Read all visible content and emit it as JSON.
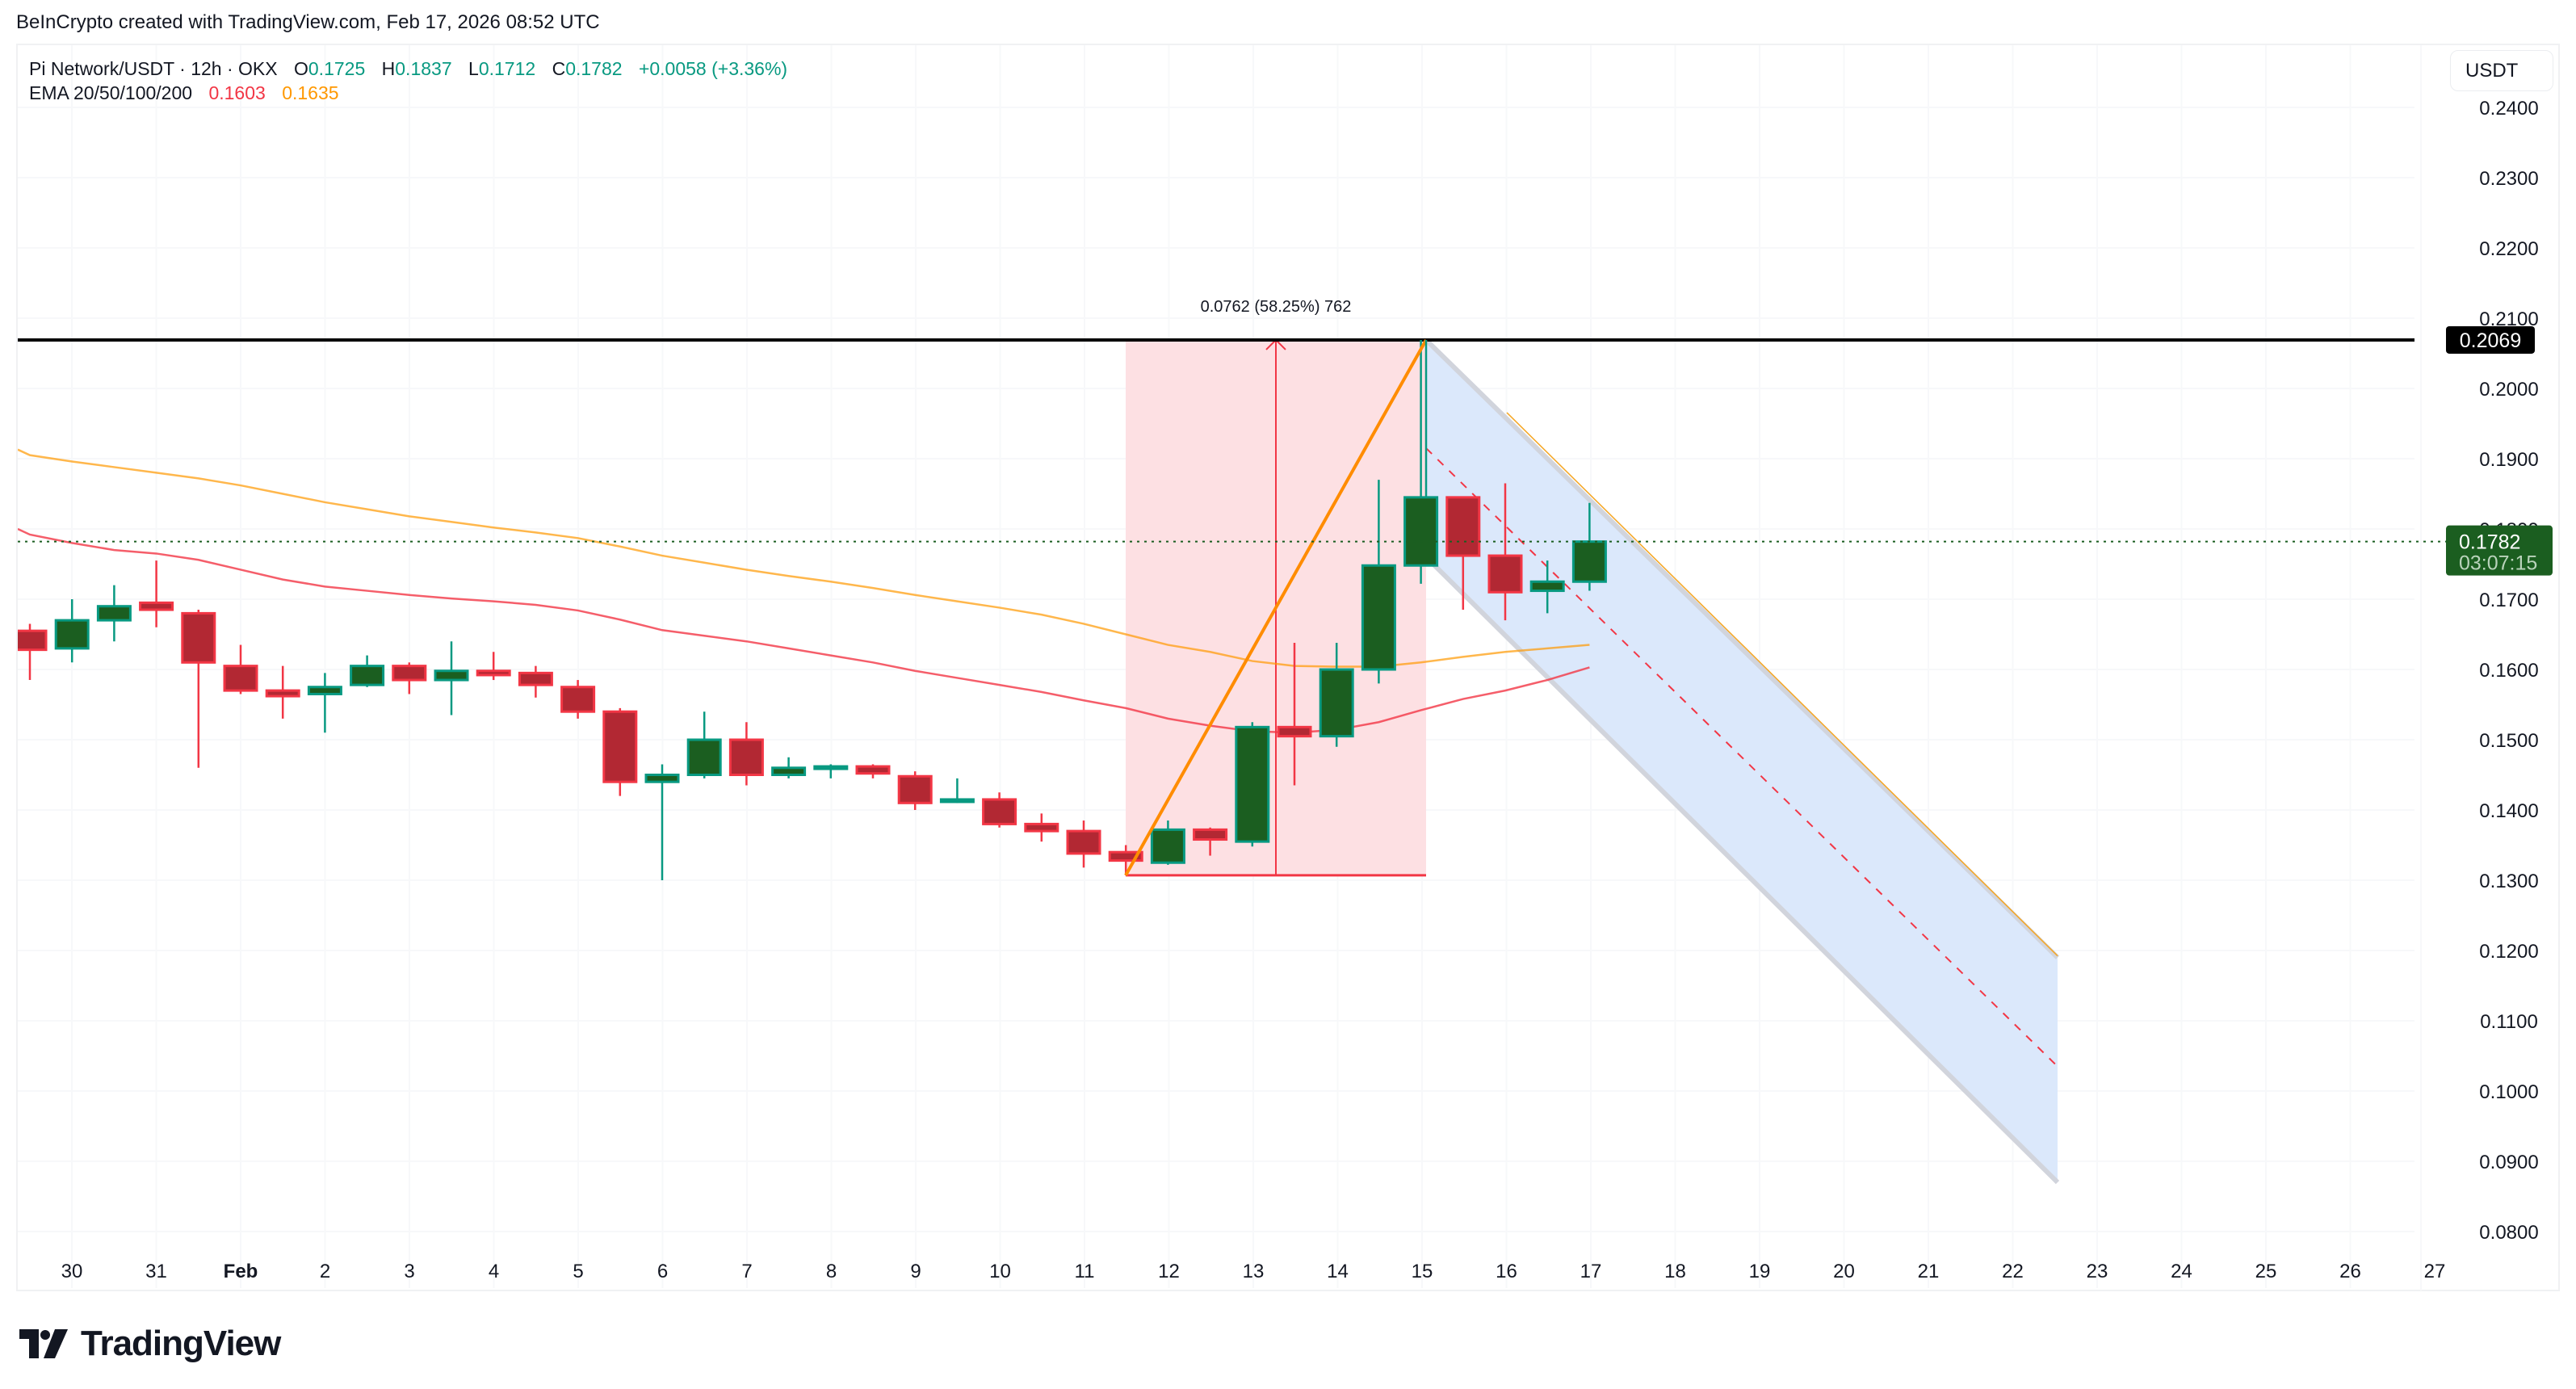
{
  "attribution": "BeInCrypto created with TradingView.com, Feb 17, 2026 08:52 UTC",
  "legend": {
    "symbol": "Pi Network/USDT · 12h · OKX",
    "open_label": "O",
    "open": "0.1725",
    "high_label": "H",
    "high": "0.1837",
    "low_label": "L",
    "low": "0.1712",
    "close_label": "C",
    "close": "0.1782",
    "change": "+0.0058 (+3.36%)",
    "ema_label": "EMA 20/50/100/200",
    "ema_values": [
      "0.1603",
      "0.1635"
    ]
  },
  "currency_button": "USDT",
  "price_tags": {
    "resistance": "0.2069",
    "last_price": "0.1782",
    "countdown": "03:07:15"
  },
  "measure_label": "0.0762 (58.25%) 762",
  "logo_text": "TradingView",
  "colors": {
    "up_body": "#1b5e20",
    "up_border": "#089981",
    "down_body": "#b22833",
    "down_border": "#f23645",
    "ema20": "#f23645",
    "ema50": "#ff9800",
    "measure_fill": "#fde0e3",
    "channel_fill": "#dbe8fb",
    "channel_edge": "#d1d4dc",
    "trend_line": "#ff8c00",
    "resistance_line": "#000000",
    "last_price_tag": "#1b5e20"
  },
  "chart_data": {
    "type": "candlestick",
    "title": "Pi Network/USDT · 12h · OKX",
    "xlabel": "",
    "ylabel": "USDT",
    "ylim": [
      0.08,
      0.24
    ],
    "y_ticks": [
      "0.2400",
      "0.2300",
      "0.2200",
      "0.2100",
      "0.2000",
      "0.1900",
      "0.1800",
      "0.1700",
      "0.1600",
      "0.1500",
      "0.1400",
      "0.1300",
      "0.1200",
      "0.1100",
      "0.1000",
      "0.0900",
      "0.0800"
    ],
    "x_ticks": [
      "30",
      "31",
      "Feb",
      "2",
      "3",
      "4",
      "5",
      "6",
      "7",
      "8",
      "9",
      "10",
      "11",
      "12",
      "13",
      "14",
      "15",
      "16",
      "17",
      "18",
      "19",
      "20",
      "21",
      "22",
      "23",
      "24",
      "25",
      "26",
      "27"
    ],
    "grid": true,
    "candles": [
      {
        "o": 0.1655,
        "h": 0.1665,
        "l": 0.1585,
        "c": 0.1628
      },
      {
        "o": 0.163,
        "h": 0.17,
        "l": 0.161,
        "c": 0.167
      },
      {
        "o": 0.167,
        "h": 0.172,
        "l": 0.164,
        "c": 0.169
      },
      {
        "o": 0.1695,
        "h": 0.1755,
        "l": 0.166,
        "c": 0.1685
      },
      {
        "o": 0.168,
        "h": 0.1685,
        "l": 0.146,
        "c": 0.161
      },
      {
        "o": 0.1605,
        "h": 0.1635,
        "l": 0.1565,
        "c": 0.157
      },
      {
        "o": 0.157,
        "h": 0.1605,
        "l": 0.153,
        "c": 0.1562
      },
      {
        "o": 0.1565,
        "h": 0.1595,
        "l": 0.151,
        "c": 0.1575
      },
      {
        "o": 0.1578,
        "h": 0.162,
        "l": 0.1575,
        "c": 0.1605
      },
      {
        "o": 0.1605,
        "h": 0.161,
        "l": 0.1565,
        "c": 0.1585
      },
      {
        "o": 0.1585,
        "h": 0.164,
        "l": 0.1535,
        "c": 0.1598
      },
      {
        "o": 0.1598,
        "h": 0.1625,
        "l": 0.1585,
        "c": 0.1592
      },
      {
        "o": 0.1595,
        "h": 0.1605,
        "l": 0.156,
        "c": 0.1578
      },
      {
        "o": 0.1575,
        "h": 0.1585,
        "l": 0.153,
        "c": 0.154
      },
      {
        "o": 0.154,
        "h": 0.1545,
        "l": 0.142,
        "c": 0.144
      },
      {
        "o": 0.144,
        "h": 0.1465,
        "l": 0.13,
        "c": 0.145
      },
      {
        "o": 0.145,
        "h": 0.154,
        "l": 0.1445,
        "c": 0.15
      },
      {
        "o": 0.15,
        "h": 0.1525,
        "l": 0.1435,
        "c": 0.145
      },
      {
        "o": 0.145,
        "h": 0.1475,
        "l": 0.1445,
        "c": 0.146
      },
      {
        "o": 0.146,
        "h": 0.1465,
        "l": 0.1445,
        "c": 0.1462
      },
      {
        "o": 0.1462,
        "h": 0.1465,
        "l": 0.1445,
        "c": 0.1452
      },
      {
        "o": 0.1448,
        "h": 0.1455,
        "l": 0.14,
        "c": 0.141
      },
      {
        "o": 0.1412,
        "h": 0.1445,
        "l": 0.141,
        "c": 0.1415
      },
      {
        "o": 0.1415,
        "h": 0.1425,
        "l": 0.1375,
        "c": 0.138
      },
      {
        "o": 0.138,
        "h": 0.1395,
        "l": 0.1355,
        "c": 0.137
      },
      {
        "o": 0.137,
        "h": 0.1385,
        "l": 0.1318,
        "c": 0.1338
      },
      {
        "o": 0.134,
        "h": 0.135,
        "l": 0.1307,
        "c": 0.1328
      },
      {
        "o": 0.1325,
        "h": 0.1385,
        "l": 0.1322,
        "c": 0.1372
      },
      {
        "o": 0.1372,
        "h": 0.1375,
        "l": 0.1335,
        "c": 0.1358
      },
      {
        "o": 0.1355,
        "h": 0.1525,
        "l": 0.1348,
        "c": 0.1518
      },
      {
        "o": 0.1518,
        "h": 0.1638,
        "l": 0.1435,
        "c": 0.1505
      },
      {
        "o": 0.1505,
        "h": 0.1638,
        "l": 0.149,
        "c": 0.16
      },
      {
        "o": 0.16,
        "h": 0.187,
        "l": 0.158,
        "c": 0.1748
      },
      {
        "o": 0.1748,
        "h": 0.2069,
        "l": 0.1722,
        "c": 0.1845
      },
      {
        "o": 0.1845,
        "h": 0.1845,
        "l": 0.1685,
        "c": 0.1762
      },
      {
        "o": 0.1762,
        "h": 0.1865,
        "l": 0.167,
        "c": 0.171
      },
      {
        "o": 0.1712,
        "h": 0.1755,
        "l": 0.168,
        "c": 0.1725
      },
      {
        "o": 0.1725,
        "h": 0.1837,
        "l": 0.1712,
        "c": 0.1782
      }
    ],
    "series": [
      {
        "name": "EMA 20",
        "color": "#f23645",
        "values": [
          0.1792,
          0.178,
          0.177,
          0.1765,
          0.1756,
          0.1742,
          0.1728,
          0.1718,
          0.1712,
          0.1706,
          0.1701,
          0.1697,
          0.1692,
          0.1684,
          0.1671,
          0.1656,
          0.1648,
          0.164,
          0.163,
          0.162,
          0.161,
          0.1598,
          0.1588,
          0.1578,
          0.1568,
          0.1556,
          0.1545,
          0.153,
          0.152,
          0.1512,
          0.151,
          0.1514,
          0.1525,
          0.1542,
          0.1558,
          0.157,
          0.1585,
          0.1603
        ]
      },
      {
        "name": "EMA 50",
        "color": "#ff9800",
        "values": [
          0.1905,
          0.1896,
          0.1888,
          0.188,
          0.1872,
          0.1862,
          0.185,
          0.1838,
          0.1828,
          0.1818,
          0.181,
          0.1802,
          0.1795,
          0.1787,
          0.1775,
          0.1762,
          0.1752,
          0.1742,
          0.1733,
          0.1725,
          0.1716,
          0.1706,
          0.1697,
          0.1688,
          0.1678,
          0.1665,
          0.165,
          0.1635,
          0.1625,
          0.1612,
          0.1605,
          0.1604,
          0.1604,
          0.161,
          0.1618,
          0.1625,
          0.163,
          0.1635
        ]
      }
    ],
    "annotations": [
      {
        "type": "horizontal_line",
        "price": 0.2069,
        "label": "0.2069"
      },
      {
        "type": "price_range",
        "from": 0.1307,
        "to": 0.2069,
        "label": "0.0762 (58.25%) 762"
      },
      {
        "type": "trend_line",
        "from": 0.1307,
        "to": 0.2069
      },
      {
        "type": "descending_channel",
        "upper_start": 0.2069,
        "upper_end": 0.119,
        "lower_start": 0.176,
        "lower_end": 0.087,
        "median_end": 0.1035
      },
      {
        "type": "last_price",
        "price": 0.1782,
        "countdown": "03:07:15"
      }
    ]
  }
}
